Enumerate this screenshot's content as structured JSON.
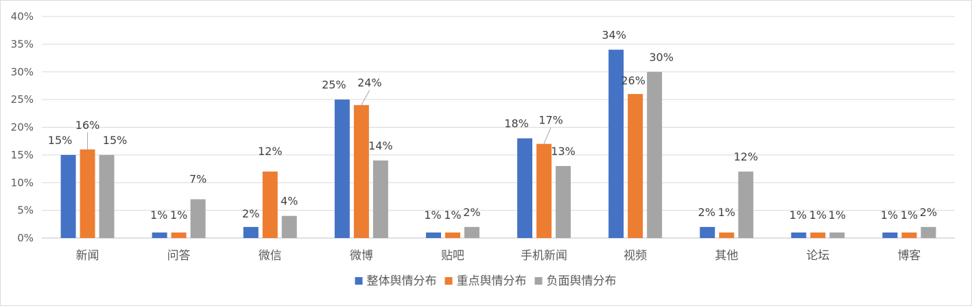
{
  "chart_data": {
    "type": "bar",
    "categories": [
      "新闻",
      "问答",
      "微信",
      "微博",
      "贴吧",
      "手机新闻",
      "视频",
      "其他",
      "论坛",
      "博客"
    ],
    "series": [
      {
        "name": "整体舆情分布",
        "color": "#4472C4",
        "values": [
          15,
          1,
          2,
          25,
          1,
          18,
          34,
          2,
          1,
          1
        ]
      },
      {
        "name": "重点舆情分布",
        "color": "#ED7D31",
        "values": [
          16,
          1,
          12,
          24,
          1,
          17,
          26,
          1,
          1,
          1
        ]
      },
      {
        "name": "负面舆情分布",
        "color": "#A5A5A5",
        "values": [
          15,
          7,
          4,
          14,
          2,
          13,
          30,
          12,
          1,
          2
        ]
      }
    ],
    "ylim": [
      0,
      40
    ],
    "yticks": [
      "0%",
      "5%",
      "10%",
      "15%",
      "20%",
      "25%",
      "30%",
      "35%",
      "40%"
    ],
    "grid": true,
    "legend_position": "bottom",
    "value_suffix": "%"
  }
}
